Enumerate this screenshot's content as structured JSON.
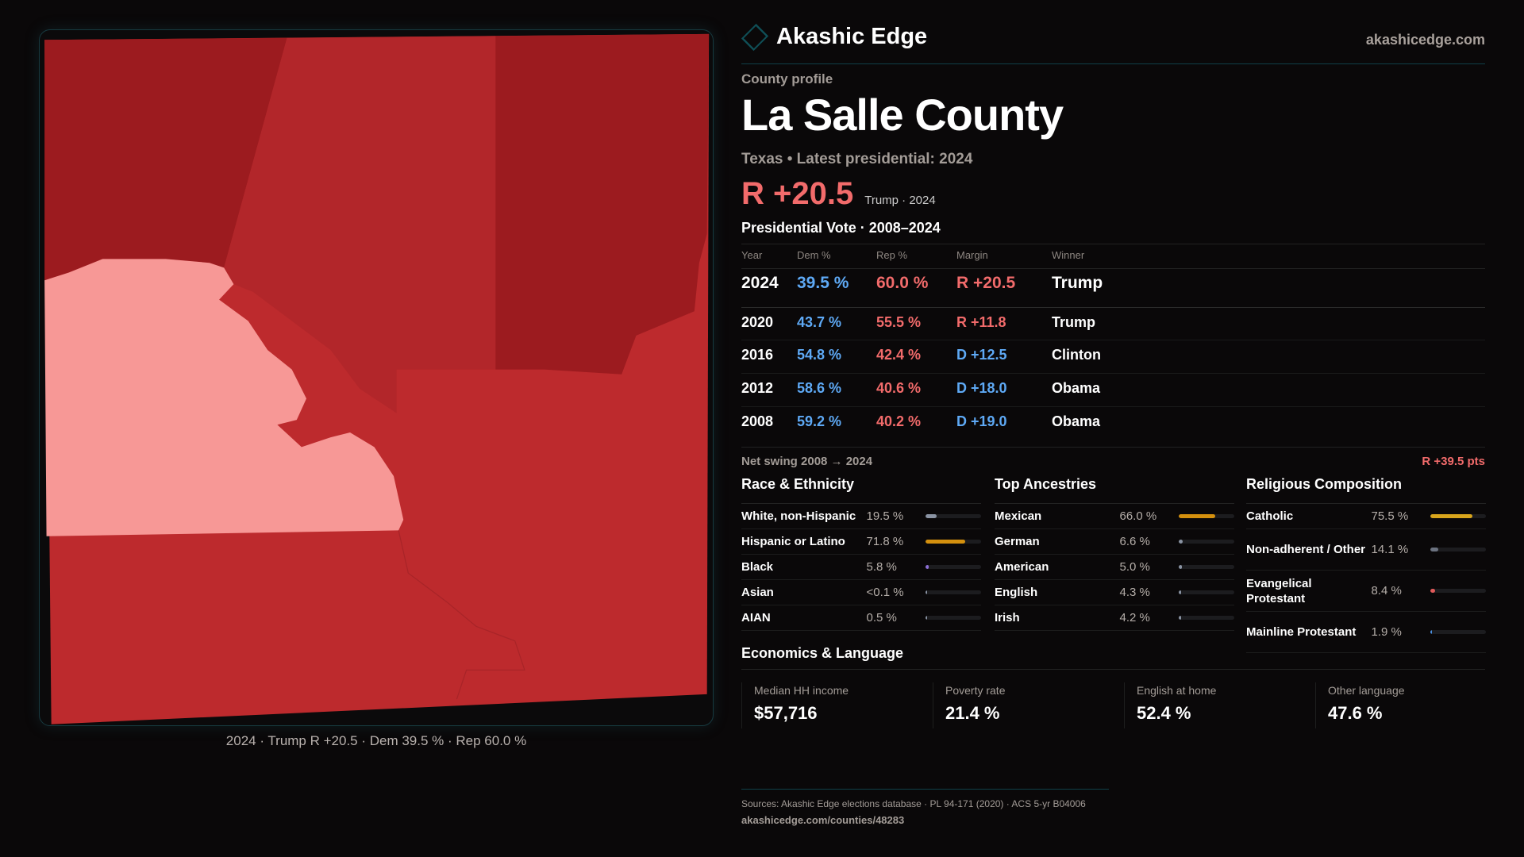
{
  "brand": {
    "name": "Akashic Edge",
    "site": "akashicedge.com"
  },
  "profile": {
    "kicker": "County profile",
    "title": "La Salle County",
    "subtitle": "Texas • Latest presidential: 2024",
    "margin": "R +20.5",
    "margin_note": "Trump · 2024"
  },
  "votes": {
    "heading": "Presidential Vote · 2008–2024",
    "headers": [
      "Year",
      "Dem %",
      "Rep %",
      "Margin",
      "Winner"
    ],
    "rows": [
      {
        "year": "2024",
        "dem": "39.5 %",
        "rep": "60.0 %",
        "margin": "R +20.5",
        "winner": "Trump",
        "party": "R"
      },
      {
        "year": "2020",
        "dem": "43.7 %",
        "rep": "55.5 %",
        "margin": "R +11.8",
        "winner": "Trump",
        "party": "R"
      },
      {
        "year": "2016",
        "dem": "54.8 %",
        "rep": "42.4 %",
        "margin": "D +12.5",
        "winner": "Clinton",
        "party": "D"
      },
      {
        "year": "2012",
        "dem": "58.6 %",
        "rep": "40.6 %",
        "margin": "D +18.0",
        "winner": "Obama",
        "party": "D"
      },
      {
        "year": "2008",
        "dem": "59.2 %",
        "rep": "40.2 %",
        "margin": "D +19.0",
        "winner": "Obama",
        "party": "D"
      }
    ],
    "swing_label": "Net swing 2008 → 2024",
    "swing_value": "R +39.5 pts"
  },
  "race": {
    "title": "Race & Ethnicity",
    "items": [
      {
        "label": "White, non-Hispanic",
        "value": "19.5 %",
        "pct": 19.5,
        "color": "#8a93a3"
      },
      {
        "label": "Hispanic or Latino",
        "value": "71.8 %",
        "pct": 71.8,
        "color": "#d4900e"
      },
      {
        "label": "Black",
        "value": "5.8 %",
        "pct": 5.8,
        "color": "#8c6fd6"
      },
      {
        "label": "Asian",
        "value": "<0.1 %",
        "pct": 0,
        "color": "#8a93a3"
      },
      {
        "label": "AIAN",
        "value": "0.5 %",
        "pct": 0.5,
        "color": "#8a93a3"
      }
    ]
  },
  "ancestry": {
    "title": "Top Ancestries",
    "items": [
      {
        "label": "Mexican",
        "value": "66.0 %",
        "pct": 66.0,
        "color": "#d4900e"
      },
      {
        "label": "German",
        "value": "6.6 %",
        "pct": 6.6,
        "color": "#8a93a3"
      },
      {
        "label": "American",
        "value": "5.0 %",
        "pct": 5.0,
        "color": "#8a93a3"
      },
      {
        "label": "English",
        "value": "4.3 %",
        "pct": 4.3,
        "color": "#8a93a3"
      },
      {
        "label": "Irish",
        "value": "4.2 %",
        "pct": 4.2,
        "color": "#8a93a3"
      }
    ]
  },
  "religion": {
    "title": "Religious Composition",
    "items": [
      {
        "label": "Catholic",
        "value": "75.5 %",
        "pct": 75.5,
        "color": "#d8a51c"
      },
      {
        "label": "Non-adherent / Other",
        "value": "14.1 %",
        "pct": 14.1,
        "color": "#6b7280"
      },
      {
        "label": "Evangelical Protestant",
        "value": "8.4 %",
        "pct": 8.4,
        "color": "#e05a5a"
      },
      {
        "label": "Mainline Protestant",
        "value": "1.9 %",
        "pct": 1.9,
        "color": "#4a8fe0"
      }
    ]
  },
  "economics": {
    "title": "Economics & Language",
    "items": [
      {
        "label": "Median HH income",
        "value": "$57,716"
      },
      {
        "label": "Poverty rate",
        "value": "21.4 %"
      },
      {
        "label": "English at home",
        "value": "52.4 %"
      },
      {
        "label": "Other language",
        "value": "47.6 %"
      }
    ]
  },
  "map": {
    "caption": "2024 · Trump R +20.5 · Dem 39.5 % · Rep 60.0 %"
  },
  "footer": {
    "sources": "Sources: Akashic Edge elections database · PL 94-171 (2020) · ACS 5-yr B04006",
    "url": "akashicedge.com/counties/48283"
  },
  "colors": {
    "rep": "#f26b6b",
    "dem": "#5ea9f5",
    "accent": "#0f4f57"
  }
}
